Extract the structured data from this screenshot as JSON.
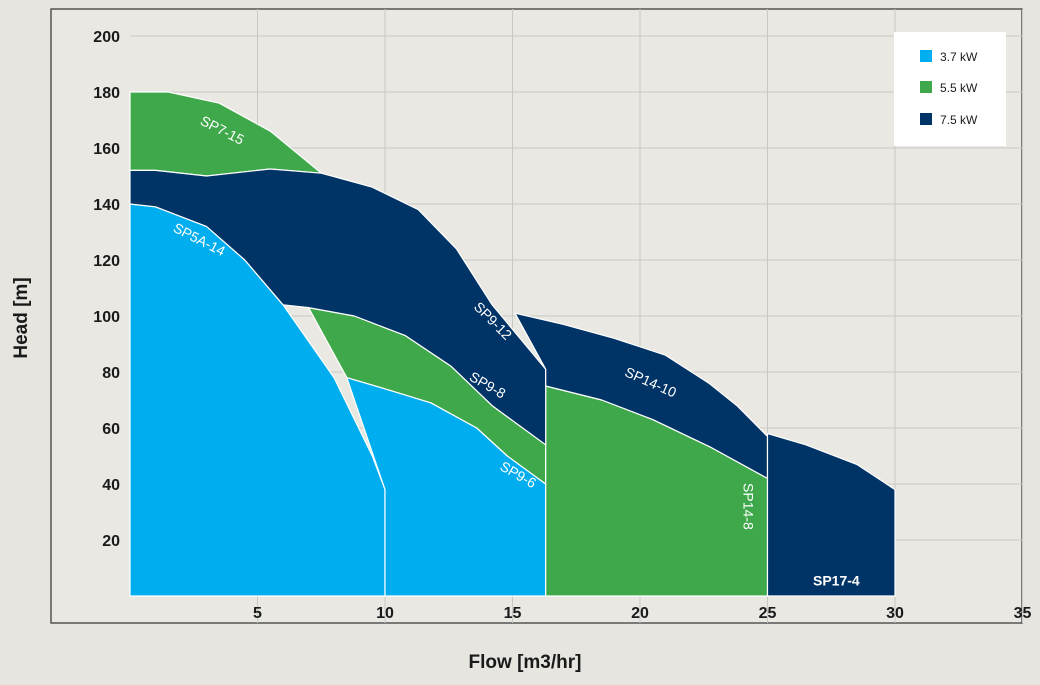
{
  "chart_data": {
    "type": "area",
    "xlabel": "Flow [m3/hr]",
    "ylabel": "Head [m]",
    "xlim": [
      0,
      35
    ],
    "ylim": [
      0,
      200
    ],
    "x_ticks": [
      5,
      10,
      15,
      20,
      25,
      30,
      35
    ],
    "y_ticks": [
      20,
      40,
      60,
      80,
      100,
      120,
      140,
      160,
      180,
      200
    ],
    "grid": true,
    "legend_position": "top-right",
    "legend": [
      {
        "label": "3.7 kW",
        "color": "#00aeef"
      },
      {
        "label": "5.5 kW",
        "color": "#3fa84a"
      },
      {
        "label": "7.5 kW",
        "color": "#003366"
      }
    ],
    "regions": [
      {
        "name": "SP5A-14",
        "power": "3.7 kW",
        "color": "#00aeef",
        "points": [
          [
            0,
            0
          ],
          [
            0,
            140
          ],
          [
            1,
            139
          ],
          [
            3,
            132
          ],
          [
            4.5,
            120
          ],
          [
            6,
            104
          ],
          [
            8,
            78
          ],
          [
            9.5,
            50
          ],
          [
            10,
            38
          ],
          [
            10,
            0
          ]
        ],
        "label_at": [
          2.7,
          127
        ],
        "label_angle": 27
      },
      {
        "name": "SP9-6",
        "power": "3.7 kW",
        "color": "#00aeef",
        "points": [
          [
            10,
            0
          ],
          [
            10,
            38
          ],
          [
            8.5,
            78
          ],
          [
            10,
            74
          ],
          [
            11.8,
            69
          ],
          [
            13.6,
            60
          ],
          [
            14.8,
            50
          ],
          [
            16.3,
            40
          ],
          [
            16.3,
            0
          ]
        ],
        "label_at": [
          15.2,
          43
        ],
        "label_angle": 30
      },
      {
        "name": "SP7-15",
        "power": "5.5 kW",
        "color": "#3fa84a",
        "points": [
          [
            0,
            152
          ],
          [
            0,
            180
          ],
          [
            1.5,
            180
          ],
          [
            3.5,
            176
          ],
          [
            5.5,
            166
          ],
          [
            7.5,
            151
          ],
          [
            5.5,
            152.5
          ],
          [
            3,
            150
          ],
          [
            1,
            152
          ]
        ],
        "label_at": [
          3.6,
          166
        ],
        "label_angle": 27
      },
      {
        "name": "SP9-8",
        "power": "5.5 kW",
        "color": "#3fa84a",
        "points": [
          [
            7,
            103
          ],
          [
            8.8,
            100
          ],
          [
            10.8,
            93
          ],
          [
            12.6,
            82
          ],
          [
            14.2,
            68
          ],
          [
            16.3,
            54
          ],
          [
            16.3,
            40
          ],
          [
            14.8,
            50
          ],
          [
            13.6,
            60
          ],
          [
            11.8,
            69
          ],
          [
            10,
            74
          ],
          [
            8.5,
            78
          ]
        ],
        "label_at": [
          14.0,
          75
        ],
        "label_angle": 30
      },
      {
        "name": "SP14-8",
        "power": "5.5 kW",
        "color": "#3fa84a",
        "points": [
          [
            16.3,
            0
          ],
          [
            16.3,
            75
          ],
          [
            18.5,
            70
          ],
          [
            20.5,
            63
          ],
          [
            22.8,
            53
          ],
          [
            25,
            42
          ],
          [
            25,
            0
          ]
        ],
        "label_at": [
          24.2,
          32
        ],
        "label_angle": 90
      },
      {
        "name": "SP9-12",
        "power": "7.5 kW",
        "color": "#003366",
        "points": [
          [
            0,
            152
          ],
          [
            1,
            152
          ],
          [
            3,
            150
          ],
          [
            5.5,
            152.5
          ],
          [
            7.5,
            151
          ],
          [
            9.5,
            146
          ],
          [
            11.3,
            138
          ],
          [
            12.8,
            124
          ],
          [
            14.2,
            104
          ],
          [
            16.3,
            81
          ],
          [
            16.3,
            54
          ],
          [
            14.2,
            68
          ],
          [
            12.6,
            82
          ],
          [
            10.8,
            93
          ],
          [
            8.8,
            100
          ],
          [
            7,
            103
          ],
          [
            6,
            104
          ],
          [
            4.5,
            120
          ],
          [
            3,
            132
          ],
          [
            1,
            139
          ],
          [
            0,
            140
          ]
        ],
        "label_at": [
          14.2,
          98
        ],
        "label_angle": 45
      },
      {
        "name": "SP14-10",
        "power": "7.5 kW",
        "color": "#003366",
        "points": [
          [
            15.1,
            101
          ],
          [
            17,
            97
          ],
          [
            19,
            92
          ],
          [
            21,
            86
          ],
          [
            22.7,
            76
          ],
          [
            23.8,
            68
          ],
          [
            25,
            57
          ],
          [
            25,
            42
          ],
          [
            22.8,
            53
          ],
          [
            20.5,
            63
          ],
          [
            18.5,
            70
          ],
          [
            16.3,
            75
          ],
          [
            16.3,
            81
          ]
        ],
        "label_at": [
          20.4,
          76
        ],
        "label_angle": 24
      },
      {
        "name": "SP17-4",
        "power": "7.5 kW",
        "color": "#003366",
        "points": [
          [
            25,
            0
          ],
          [
            25,
            58
          ],
          [
            26.5,
            54
          ],
          [
            28.5,
            47
          ],
          [
            30,
            38
          ],
          [
            30,
            0
          ]
        ],
        "label_at": [
          27.7,
          5
        ],
        "label_angle": 0
      }
    ]
  }
}
